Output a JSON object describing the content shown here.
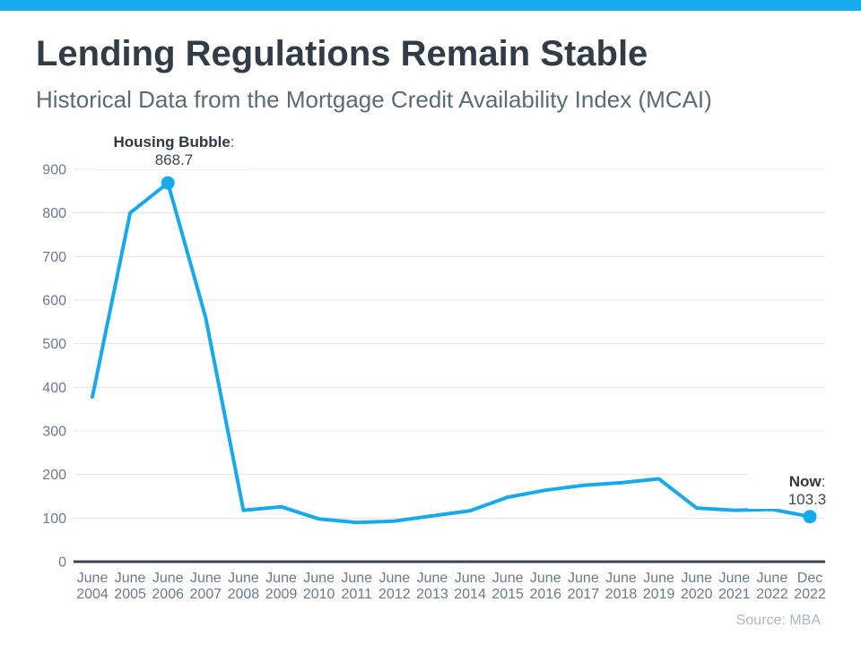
{
  "page": {
    "title": "Lending Regulations Remain Stable",
    "subtitle": "Historical Data from the Mortgage Credit Availability Index (MCAI)",
    "source": "Source: MBA",
    "accent_color": "#18a9ec"
  },
  "chart_data": {
    "type": "line",
    "title": "Lending Regulations Remain Stable",
    "subtitle": "Historical Data from the Mortgage Credit Availability Index (MCAI)",
    "xlabel": "",
    "ylabel": "",
    "ylim": [
      0,
      900
    ],
    "yticks": [
      0,
      100,
      200,
      300,
      400,
      500,
      600,
      700,
      800,
      900
    ],
    "grid": true,
    "legend": "none",
    "line_color": "#18a9ec",
    "grid_color": "#e4e4e4",
    "axis_line_color": "#3b454f",
    "tick_label_color": "#6b7a8d",
    "categories": [
      {
        "line1": "June",
        "line2": "2004"
      },
      {
        "line1": "June",
        "line2": "2005"
      },
      {
        "line1": "June",
        "line2": "2006"
      },
      {
        "line1": "June",
        "line2": "2007"
      },
      {
        "line1": "June",
        "line2": "2008"
      },
      {
        "line1": "June",
        "line2": "2009"
      },
      {
        "line1": "June",
        "line2": "2010"
      },
      {
        "line1": "June",
        "line2": "2011"
      },
      {
        "line1": "June",
        "line2": "2012"
      },
      {
        "line1": "June",
        "line2": "2013"
      },
      {
        "line1": "June",
        "line2": "2014"
      },
      {
        "line1": "June",
        "line2": "2015"
      },
      {
        "line1": "June",
        "line2": "2016"
      },
      {
        "line1": "June",
        "line2": "2017"
      },
      {
        "line1": "June",
        "line2": "2018"
      },
      {
        "line1": "June",
        "line2": "2019"
      },
      {
        "line1": "June",
        "line2": "2020"
      },
      {
        "line1": "June",
        "line2": "2021"
      },
      {
        "line1": "June",
        "line2": "2022"
      },
      {
        "line1": "Dec",
        "line2": "2022"
      }
    ],
    "values": [
      378,
      800,
      868.7,
      560,
      118,
      126,
      98,
      90,
      93,
      105,
      117,
      148,
      164,
      175,
      181,
      190,
      123,
      118,
      120,
      103.3
    ],
    "annotations": [
      {
        "label": "Housing Bubble",
        "colon": ":",
        "value": "868.7",
        "index": 2
      },
      {
        "label": "Now",
        "colon": ":",
        "value": "103.3",
        "index": 19
      }
    ]
  }
}
